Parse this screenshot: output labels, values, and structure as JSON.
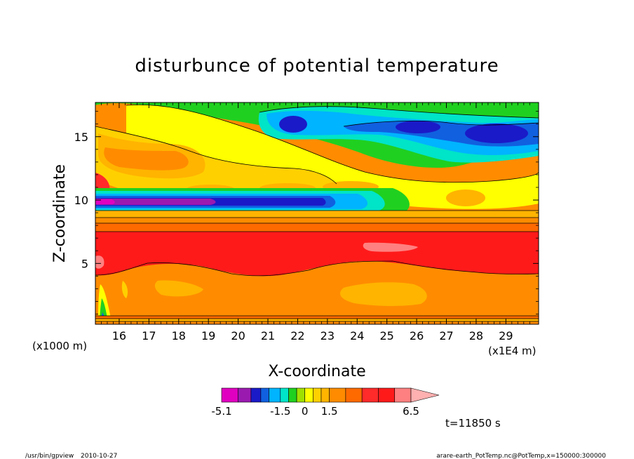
{
  "chart_data": {
    "type": "heatmap",
    "title": "disturbunce of potential temperature",
    "xlabel": "X-coordinate",
    "ylabel": "Z-coordinate",
    "x_unit_label": "(x1E4 m)",
    "y_unit_label": "(x1000 m)",
    "xlim": [
      15.2,
      30.1
    ],
    "ylim": [
      0.2,
      17.7
    ],
    "xticks": [
      16,
      17,
      18,
      19,
      20,
      21,
      22,
      23,
      24,
      25,
      26,
      27,
      28,
      29
    ],
    "yticks": [
      5,
      10,
      15
    ],
    "grid": false,
    "levels": [
      -5.1,
      -4.1,
      -3.3,
      -2.7,
      -2.2,
      -1.5,
      -1.0,
      -0.5,
      0,
      0.5,
      1.0,
      1.5,
      2.5,
      3.5,
      4.5,
      5.5,
      6.5
    ],
    "colors": [
      "#e000c0",
      "#9a1ab0",
      "#1a1ac8",
      "#1060e0",
      "#00b4ff",
      "#00e4c8",
      "#20d020",
      "#a0e000",
      "#ffff00",
      "#ffd000",
      "#ffb400",
      "#ff8c00",
      "#ff6a00",
      "#ff2a2a",
      "#ff1a1a",
      "#ff8080"
    ],
    "colorbar_labels": [
      {
        "value": -5.1,
        "text": "-5.1"
      },
      {
        "value": -1.5,
        "text": "-1.5"
      },
      {
        "value": 0,
        "text": "0"
      },
      {
        "value": 1.5,
        "text": "1.5"
      },
      {
        "value": 6.5,
        "text": "6.5"
      }
    ],
    "time_label": "t=11850 s"
  },
  "footer": {
    "program": "/usr/bin/gpview",
    "date": "2010-10-27",
    "source": "arare-earth_PotTemp.nc@PotTemp,x=150000:300000"
  }
}
